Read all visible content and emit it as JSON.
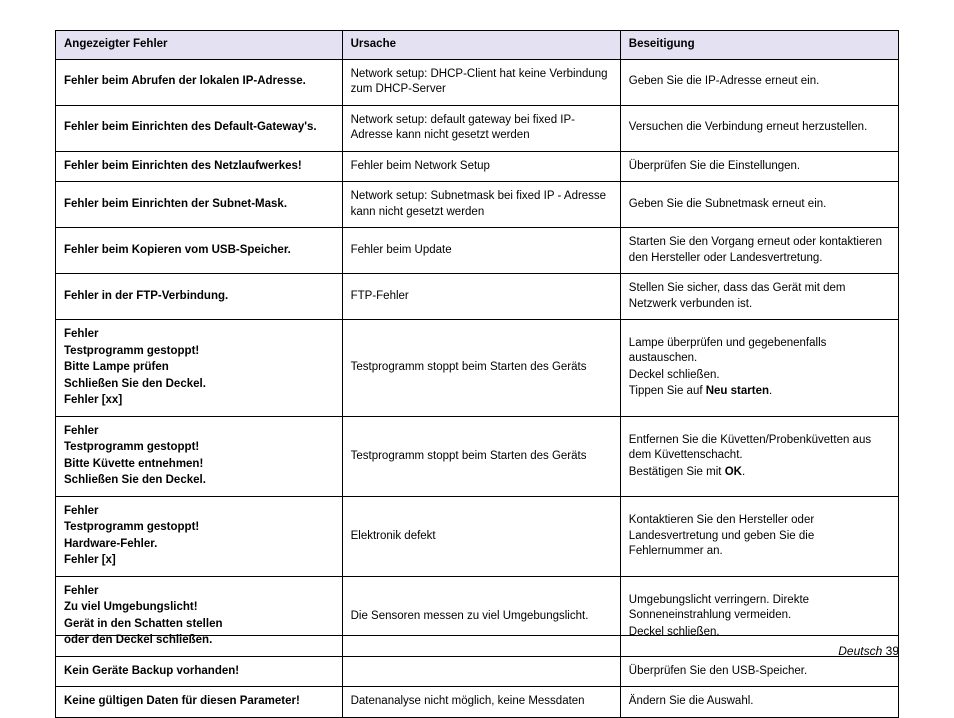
{
  "table": {
    "headers": [
      "Angezeigter Fehler",
      "Ursache",
      "Beseitigung"
    ],
    "rows": [
      {
        "error_lines": [
          "Fehler beim Abrufen der lokalen IP-Adresse."
        ],
        "cause_lines": [
          "Network setup: DHCP-Client hat keine Verbindung zum DHCP-Server"
        ],
        "fix_lines": [
          "Geben Sie die IP-Adresse erneut ein."
        ]
      },
      {
        "error_lines": [
          "Fehler beim Einrichten des Default-Gateway's."
        ],
        "cause_lines": [
          "Network setup: default gateway bei fixed IP-Adresse kann nicht gesetzt werden"
        ],
        "fix_lines": [
          "Versuchen die Verbindung erneut herzustellen."
        ]
      },
      {
        "error_lines": [
          "Fehler beim Einrichten des Netzlaufwerkes!"
        ],
        "cause_lines": [
          "Fehler beim Network Setup"
        ],
        "fix_lines": [
          "Überprüfen Sie die Einstellungen."
        ]
      },
      {
        "error_lines": [
          "Fehler beim Einrichten der Subnet-Mask."
        ],
        "cause_lines": [
          "Network setup: Subnetmask bei fixed IP - Adresse kann nicht gesetzt werden"
        ],
        "fix_lines": [
          "Geben Sie die Subnetmask erneut ein."
        ]
      },
      {
        "error_lines": [
          "Fehler beim Kopieren vom USB-Speicher."
        ],
        "cause_lines": [
          "Fehler beim Update"
        ],
        "fix_lines": [
          "Starten Sie den Vorgang erneut oder kontaktieren den Hersteller oder Landesvertretung."
        ]
      },
      {
        "error_lines": [
          "Fehler in der FTP-Verbindung."
        ],
        "cause_lines": [
          "FTP-Fehler"
        ],
        "fix_lines": [
          "Stellen Sie sicher, dass das Gerät mit dem Netzwerk verbunden ist."
        ]
      },
      {
        "error_lines": [
          "Fehler",
          "Testprogramm gestoppt!",
          "Bitte Lampe prüfen",
          "Schließen Sie den Deckel.",
          "Fehler [xx]"
        ],
        "cause_lines": [
          "Testprogramm stoppt beim Starten des Geräts"
        ],
        "fix_lines_rich": [
          {
            "parts": [
              {
                "t": "Lampe überprüfen und gegebenenfalls austauschen.",
                "b": false
              }
            ]
          },
          {
            "parts": [
              {
                "t": "Deckel schließen.",
                "b": false
              }
            ]
          },
          {
            "parts": [
              {
                "t": "Tippen Sie auf ",
                "b": false
              },
              {
                "t": "Neu starten",
                "b": true
              },
              {
                "t": ".",
                "b": false
              }
            ]
          }
        ]
      },
      {
        "error_lines": [
          "Fehler",
          "Testprogramm gestoppt!",
          "Bitte Küvette entnehmen!",
          "Schließen Sie den Deckel."
        ],
        "cause_lines": [
          "Testprogramm stoppt beim Starten des Geräts"
        ],
        "fix_lines_rich": [
          {
            "parts": [
              {
                "t": "Entfernen Sie die Küvetten/Probenküvetten aus dem Küvettenschacht.",
                "b": false
              }
            ]
          },
          {
            "parts": [
              {
                "t": "Bestätigen Sie mit ",
                "b": false
              },
              {
                "t": "OK",
                "b": true
              },
              {
                "t": ".",
                "b": false
              }
            ]
          }
        ]
      },
      {
        "error_lines": [
          "Fehler",
          "Testprogramm gestoppt!",
          "Hardware-Fehler.",
          "Fehler [x]"
        ],
        "cause_lines": [
          "Elektronik defekt"
        ],
        "fix_lines": [
          "Kontaktieren Sie den Hersteller oder Landesvertretung und geben Sie die Fehlernummer an."
        ]
      },
      {
        "error_lines": [
          "Fehler",
          "Zu viel Umgebungslicht!",
          "Gerät in den Schatten stellen",
          "oder den Deckel schließen."
        ],
        "cause_lines": [
          "Die Sensoren messen zu viel Umgebungslicht."
        ],
        "fix_lines": [
          "Umgebungslicht verringern. Direkte Sonneneinstrahlung vermeiden.",
          "Deckel schließen."
        ]
      },
      {
        "error_lines": [
          "Kein Geräte Backup vorhanden!"
        ],
        "cause_lines": [
          ""
        ],
        "fix_lines": [
          "Überprüfen Sie den USB-Speicher."
        ]
      },
      {
        "error_lines": [
          "Keine gültigen Daten für diesen Parameter!"
        ],
        "cause_lines": [
          "Datenanalyse nicht möglich, keine Messdaten"
        ],
        "fix_lines": [
          "Ändern Sie die Auswahl."
        ]
      }
    ]
  },
  "footer": {
    "language": "Deutsch",
    "page_number": "39"
  }
}
